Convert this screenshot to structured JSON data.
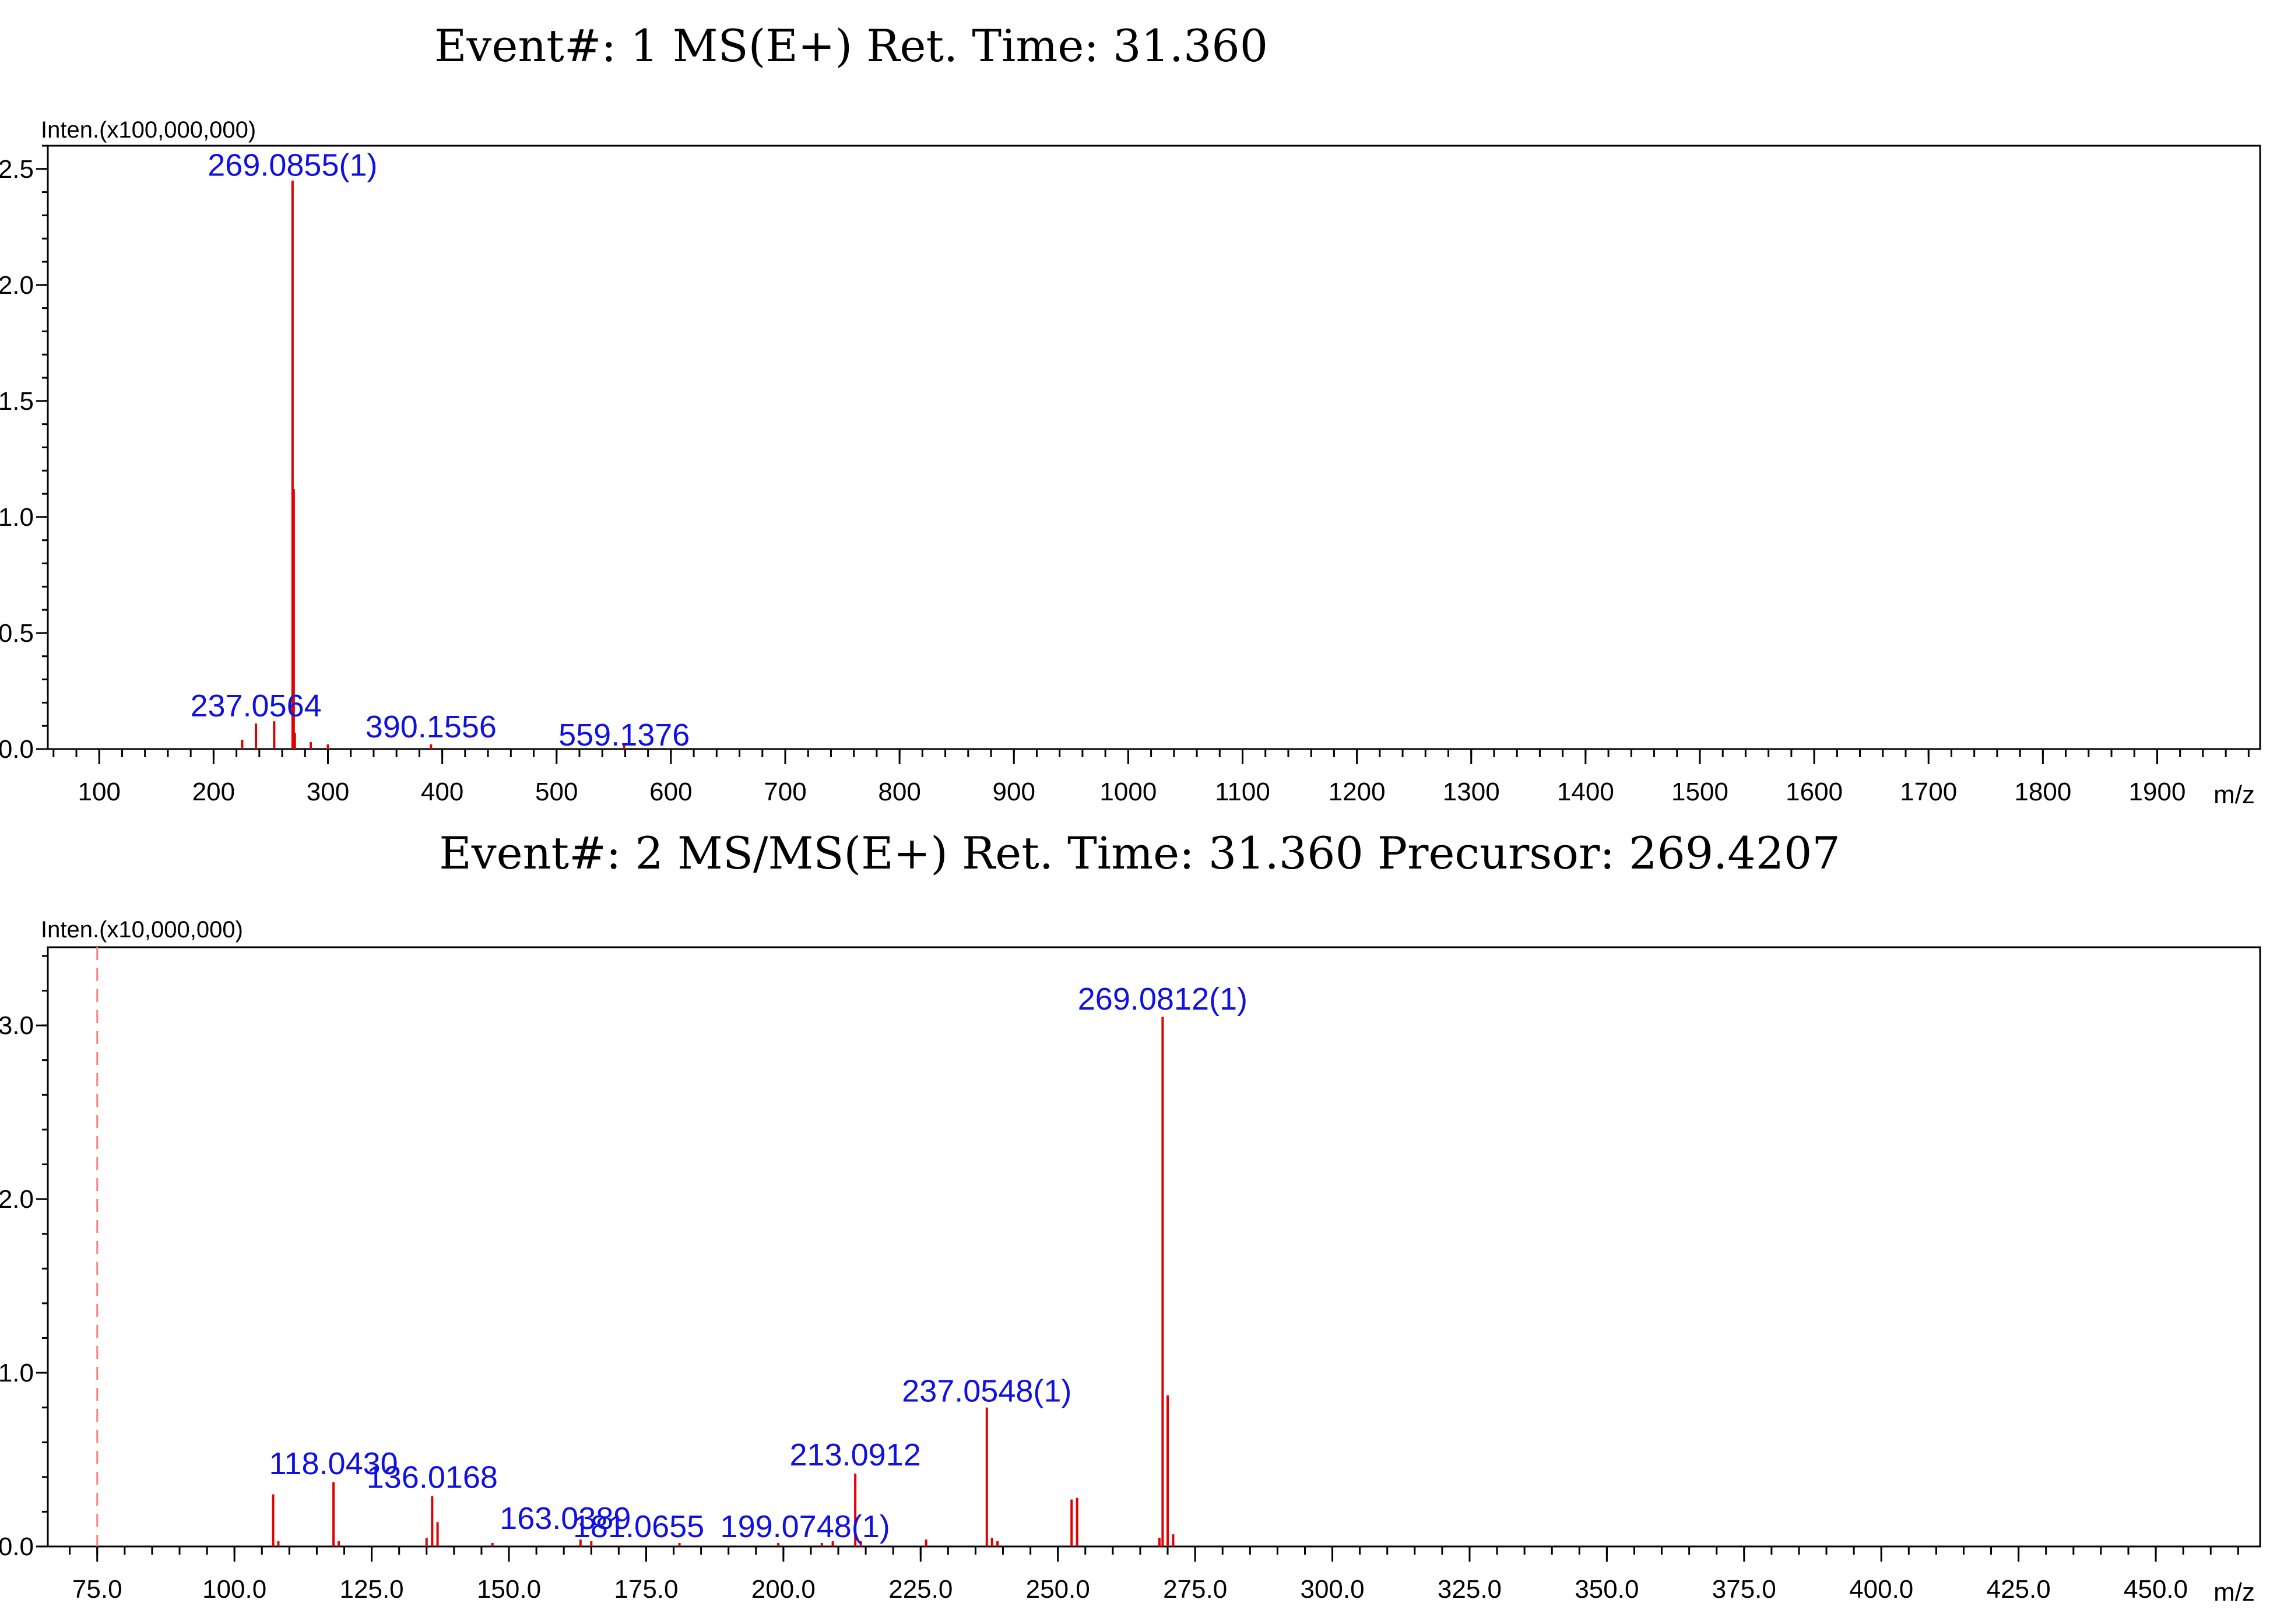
{
  "chart_data": [
    {
      "type": "bar",
      "title": "Event#: 1 MS(E+)      Ret. Time: 31.360",
      "ylabel": "Inten.(x100,000,000)",
      "xlabel": "m/z",
      "xlim": [
        55,
        1990
      ],
      "ylim": [
        0,
        2.6
      ],
      "x_major_ticks": [
        100,
        200,
        300,
        400,
        500,
        600,
        700,
        800,
        900,
        1000,
        1100,
        1200,
        1300,
        1400,
        1500,
        1600,
        1700,
        1800,
        1900
      ],
      "x_minor_step": 20,
      "x_tick_labels": [
        "100",
        "200",
        "300",
        "400",
        "500",
        "600",
        "700",
        "800",
        "900",
        "1000",
        "1100",
        "1200",
        "1300",
        "1400",
        "1500",
        "1600",
        "1700",
        "1800",
        "1900"
      ],
      "y_ticks": [
        0,
        0.5,
        1.0,
        1.5,
        2.0,
        2.5
      ],
      "y_tick_labels": [
        "0.0",
        "0.5",
        "1.0",
        "1.5",
        "2.0",
        "2.5"
      ],
      "peaks": [
        {
          "x": 225.0,
          "y": 0.04
        },
        {
          "x": 237.0564,
          "y": 0.11
        },
        {
          "x": 253.0,
          "y": 0.12
        },
        {
          "x": 269.0855,
          "y": 2.45
        },
        {
          "x": 270.09,
          "y": 1.12
        },
        {
          "x": 271.09,
          "y": 0.07
        },
        {
          "x": 285.0,
          "y": 0.03
        },
        {
          "x": 300.0,
          "y": 0.02
        },
        {
          "x": 390.1556,
          "y": 0.02
        },
        {
          "x": 559.1376,
          "y": 0.02
        }
      ],
      "labels": [
        {
          "text": "269.0855(1)",
          "x": 269.0855,
          "y": 2.45
        },
        {
          "text": "237.0564",
          "x": 237.0564,
          "y": 0.11
        },
        {
          "text": "390.1556",
          "x": 390.1556,
          "y": 0.02
        },
        {
          "text": "559.1376",
          "x": 559.1376,
          "y": 0.0
        }
      ]
    },
    {
      "type": "bar",
      "title": "Event#: 2 MS/MS(E+)      Ret. Time: 31.360      Precursor: 269.4207",
      "ylabel": "Inten.(x10,000,000)",
      "xlabel": "m/z",
      "xlim": [
        66,
        469
      ],
      "ylim": [
        0,
        3.45
      ],
      "precursor_marker": 75.0,
      "x_major_ticks": [
        75,
        100,
        125,
        150,
        175,
        200,
        225,
        250,
        275,
        300,
        325,
        350,
        375,
        400,
        425,
        450
      ],
      "x_minor_step": 5,
      "x_tick_labels": [
        "75.0",
        "100.0",
        "125.0",
        "150.0",
        "175.0",
        "200.0",
        "225.0",
        "250.0",
        "275.0",
        "300.0",
        "325.0",
        "350.0",
        "375.0",
        "400.0",
        "425.0",
        "450.0"
      ],
      "y_ticks": [
        0,
        1.0,
        2.0,
        3.0
      ],
      "y_tick_labels": [
        "0.0",
        "1.0",
        "2.0",
        "3.0"
      ],
      "peaks": [
        {
          "x": 107.05,
          "y": 0.3
        },
        {
          "x": 108.0,
          "y": 0.03
        },
        {
          "x": 118.043,
          "y": 0.37
        },
        {
          "x": 119.0,
          "y": 0.03
        },
        {
          "x": 135.0,
          "y": 0.05
        },
        {
          "x": 136.0168,
          "y": 0.29
        },
        {
          "x": 137.0,
          "y": 0.14
        },
        {
          "x": 147.0,
          "y": 0.02
        },
        {
          "x": 163.0389,
          "y": 0.04
        },
        {
          "x": 165.0,
          "y": 0.03
        },
        {
          "x": 181.0655,
          "y": 0.02
        },
        {
          "x": 199.0748,
          "y": 0.02
        },
        {
          "x": 207.0,
          "y": 0.02
        },
        {
          "x": 209.0,
          "y": 0.03
        },
        {
          "x": 213.0912,
          "y": 0.42
        },
        {
          "x": 214.1,
          "y": 0.03
        },
        {
          "x": 226.0,
          "y": 0.04
        },
        {
          "x": 237.0548,
          "y": 0.8
        },
        {
          "x": 238.0,
          "y": 0.05
        },
        {
          "x": 239.0,
          "y": 0.03
        },
        {
          "x": 252.5,
          "y": 0.27
        },
        {
          "x": 253.5,
          "y": 0.28
        },
        {
          "x": 268.5,
          "y": 0.05
        },
        {
          "x": 269.0812,
          "y": 3.05
        },
        {
          "x": 270.0,
          "y": 0.87
        },
        {
          "x": 271.0,
          "y": 0.07
        }
      ],
      "labels": [
        {
          "text": "269.0812(1)",
          "x": 269.0812,
          "y": 3.05
        },
        {
          "text": "237.0548(1)",
          "x": 237.0548,
          "y": 0.8
        },
        {
          "text": "213.0912",
          "x": 213.0912,
          "y": 0.42
        },
        {
          "text": "118.0430",
          "x": 118.043,
          "y": 0.37
        },
        {
          "text": "136.0168",
          "x": 136.0168,
          "y": 0.29
        },
        {
          "text": "163.0389",
          "x": 163.0389,
          "y": 0.04
        },
        {
          "text": "181.0655",
          "x": 181.0655,
          "y": 0.02
        },
        {
          "text": "199.0748(1)",
          "x": 199.0748,
          "y": 0.02
        }
      ]
    }
  ]
}
